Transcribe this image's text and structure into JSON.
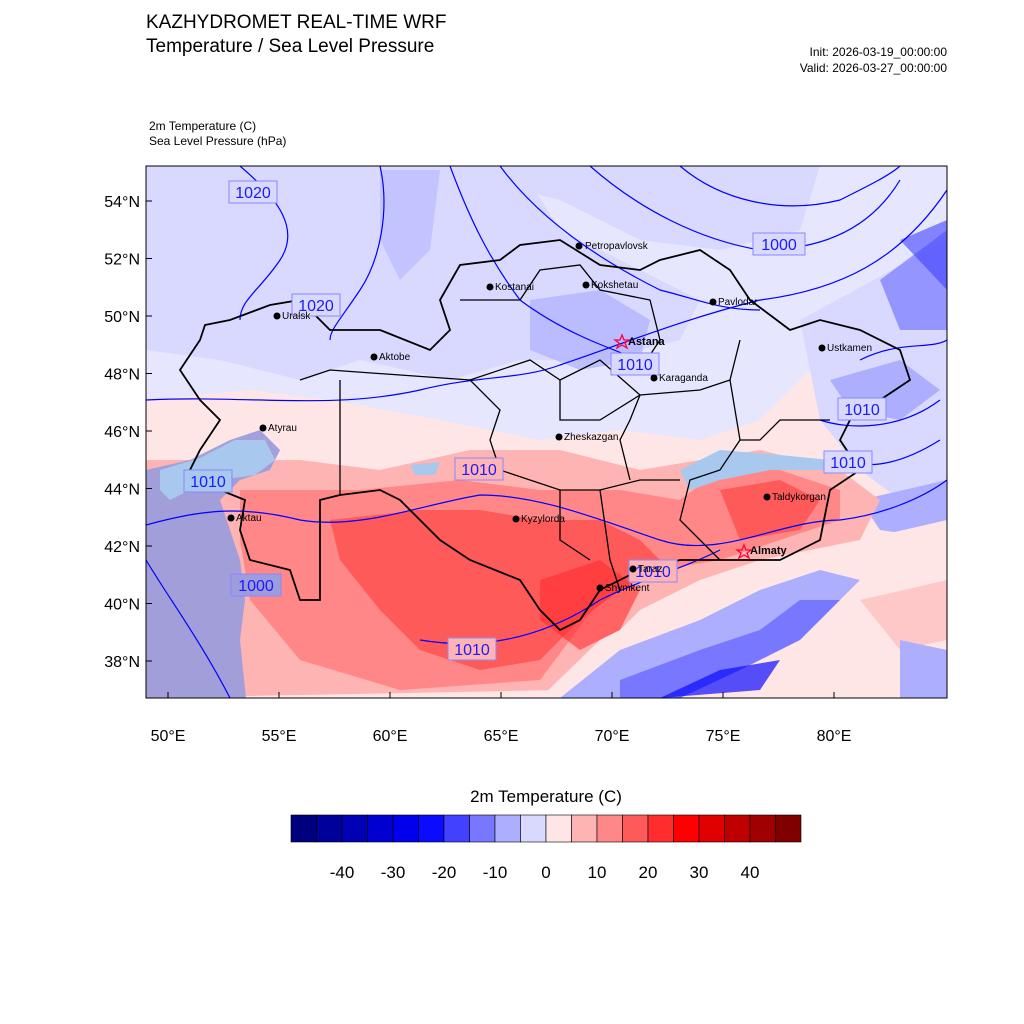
{
  "header": {
    "title_line1": "KAZHYDROMET REAL-TIME WRF",
    "title_line2": "Temperature / Sea Level Pressure",
    "init": "Init: 2026-03-19_00:00:00",
    "valid": "Valid: 2026-03-27_00:00:00",
    "field1": "2m Temperature   (C)",
    "field2": "Sea Level Pressure   (hPa)"
  },
  "map": {
    "lon_ticks": [
      "50°E",
      "55°E",
      "60°E",
      "65°E",
      "70°E",
      "75°E",
      "80°E"
    ],
    "lat_ticks": [
      "38°N",
      "40°N",
      "42°N",
      "44°N",
      "46°N",
      "48°N",
      "50°N",
      "52°N",
      "54°N"
    ],
    "cities": [
      {
        "name": "Petropavlovsk",
        "marker": "dot",
        "bold": false
      },
      {
        "name": "Kokshetau",
        "marker": "dot",
        "bold": false
      },
      {
        "name": "Kostanai",
        "marker": "dot",
        "bold": false
      },
      {
        "name": "Pavlodar",
        "marker": "dot",
        "bold": false
      },
      {
        "name": "Uralsk",
        "marker": "dot",
        "bold": false
      },
      {
        "name": "Aktobe",
        "marker": "dot",
        "bold": false
      },
      {
        "name": "Astana",
        "marker": "star",
        "bold": true
      },
      {
        "name": "Karaganda",
        "marker": "dot",
        "bold": false
      },
      {
        "name": "Ustkamen",
        "marker": "dot",
        "bold": false
      },
      {
        "name": "Atyrau",
        "marker": "dot",
        "bold": false
      },
      {
        "name": "Zheskazgan",
        "marker": "dot",
        "bold": false
      },
      {
        "name": "Aktau",
        "marker": "dot",
        "bold": false
      },
      {
        "name": "Kyzylorda",
        "marker": "dot",
        "bold": false
      },
      {
        "name": "Taldykorgan",
        "marker": "dot",
        "bold": false
      },
      {
        "name": "Almaty",
        "marker": "star",
        "bold": true
      },
      {
        "name": "Taraz",
        "marker": "dot",
        "bold": false
      },
      {
        "name": "Shymkent",
        "marker": "dot",
        "bold": false
      }
    ],
    "isobar_labels": [
      "1020",
      "1020",
      "1000",
      "1010",
      "1010",
      "1010",
      "1010",
      "1010",
      "1000",
      "1010",
      "1010"
    ]
  },
  "colorbar": {
    "title": "2m Temperature  (C)",
    "tick_labels": [
      "-40",
      "-30",
      "-20",
      "-10",
      "0",
      "10",
      "20",
      "30",
      "40"
    ],
    "colors": [
      "#00007f",
      "#00009a",
      "#0000b5",
      "#0000d1",
      "#0000ec",
      "#0b0bff",
      "#4141ff",
      "#7777ff",
      "#aeaeff",
      "#d9d9ff",
      "#ffe6e6",
      "#ffb4b4",
      "#ff8787",
      "#ff5a5a",
      "#ff2d2d",
      "#ff0000",
      "#e00000",
      "#c00000",
      "#a00000",
      "#800000"
    ]
  },
  "colors": {
    "isobar": "#0000ff",
    "border": "#000000",
    "frame": "#000000"
  }
}
